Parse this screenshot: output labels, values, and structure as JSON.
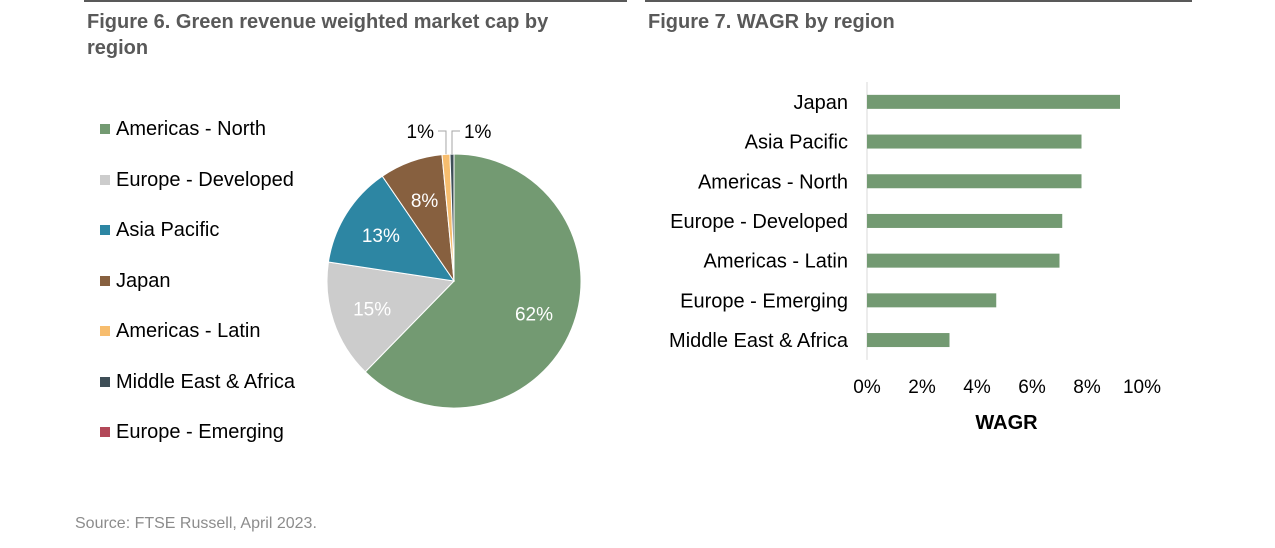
{
  "figure6": {
    "title": "Figure 6. Green revenue weighted market cap by region",
    "legend": [
      {
        "label": "Americas - North",
        "color": "#739a72"
      },
      {
        "label": "Europe - Developed",
        "color": "#cccccc"
      },
      {
        "label": "Asia Pacific",
        "color": "#2d86a3"
      },
      {
        "label": "Japan",
        "color": "#87603f"
      },
      {
        "label": "Americas - Latin",
        "color": "#f7bd6e"
      },
      {
        "label": "Middle East & Africa",
        "color": "#3e4e57"
      },
      {
        "label": "Europe - Emerging",
        "color": "#b24858"
      }
    ]
  },
  "figure7": {
    "title": "Figure 7. WAGR by region"
  },
  "source": "Source: FTSE Russell, April 2023.",
  "chart_data": [
    {
      "type": "pie",
      "title": "Figure 6. Green revenue weighted market cap by region",
      "slices": [
        {
          "label": "Americas - North",
          "value": 62,
          "display": "62%",
          "color": "#739a72"
        },
        {
          "label": "Europe - Developed",
          "value": 15,
          "display": "15%",
          "color": "#cccccc"
        },
        {
          "label": "Asia Pacific",
          "value": 13,
          "display": "13%",
          "color": "#2d86a3"
        },
        {
          "label": "Japan",
          "value": 8,
          "display": "8%",
          "color": "#87603f"
        },
        {
          "label": "Americas - Latin",
          "value": 1,
          "display": "1%",
          "color": "#f7bd6e"
        },
        {
          "label": "Middle East & Africa",
          "value": 0.5,
          "display": "1%",
          "color": "#3e4e57"
        },
        {
          "label": "Europe - Emerging",
          "value": 0,
          "display": "",
          "color": "#b24858"
        }
      ]
    },
    {
      "type": "bar",
      "orientation": "horizontal",
      "title": "Figure 7. WAGR by region",
      "categories": [
        "Japan",
        "Asia Pacific",
        "Americas - North",
        "Europe - Developed",
        "Americas - Latin",
        "Europe - Emerging",
        "Middle East & Africa"
      ],
      "values": [
        9.2,
        7.8,
        7.8,
        7.1,
        7.0,
        4.7,
        3.0
      ],
      "xlabel": "WAGR",
      "xlim": [
        0,
        10
      ],
      "xticks": [
        "0%",
        "2%",
        "4%",
        "6%",
        "8%",
        "10%"
      ],
      "color": "#739a72",
      "grid": false
    }
  ]
}
